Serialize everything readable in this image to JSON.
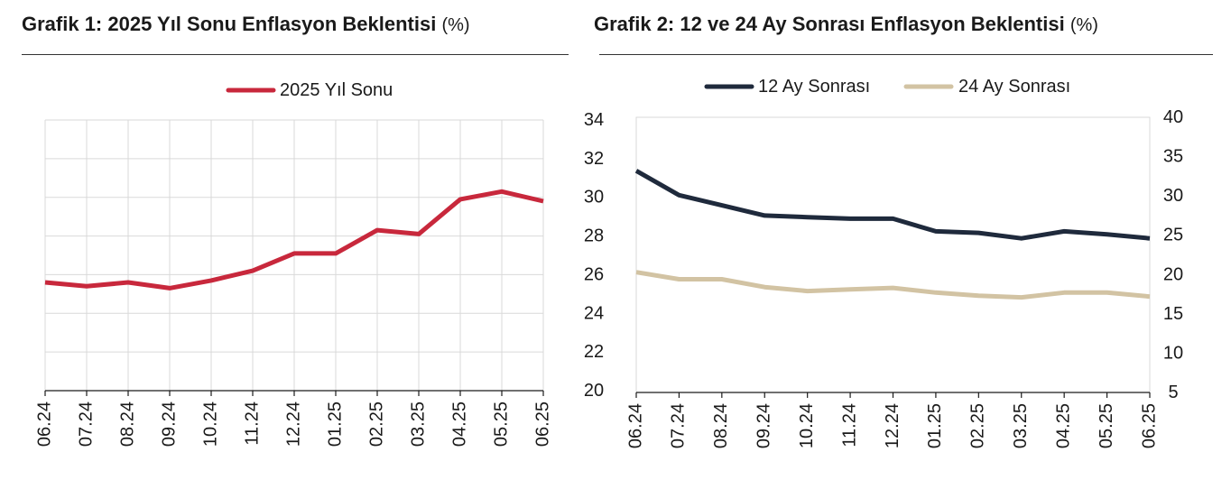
{
  "charts": {
    "left": {
      "title_bold": "Grafik 1: 2025 Yıl Sonu Enflasyon Beklentisi",
      "title_unit": "(%)"
    },
    "right": {
      "title_bold": "Grafik 2: 12 ve 24 Ay Sonrası Enflasyon Beklentisi",
      "title_unit": "(%)"
    }
  },
  "colors": {
    "red": "#c8283c",
    "navy": "#1f2a3c",
    "beige": "#d2c3a3",
    "grid": "#d9d9d9",
    "axis": "#1a1a1a"
  },
  "chart_data": [
    {
      "type": "line",
      "title": "Grafik 1: 2025 Yıl Sonu Enflasyon Beklentisi (%)",
      "categories": [
        "06.24",
        "07.24",
        "08.24",
        "09.24",
        "10.24",
        "11.24",
        "12.24",
        "01.25",
        "02.25",
        "03.25",
        "04.25",
        "05.25",
        "06.25"
      ],
      "y_axis": "right",
      "ylim": [
        20,
        34
      ],
      "yticks": [
        20,
        22,
        24,
        26,
        28,
        30,
        32,
        34
      ],
      "grid": true,
      "legend_position": "top",
      "series": [
        {
          "name": "2025 Yıl Sonu",
          "color": "#c8283c",
          "values": [
            25.6,
            25.4,
            25.6,
            25.3,
            25.7,
            26.2,
            27.1,
            27.1,
            28.3,
            28.1,
            29.9,
            30.3,
            29.8
          ]
        }
      ]
    },
    {
      "type": "line",
      "title": "Grafik 2: 12 ve 24 Ay Sonrası Enflasyon Beklentisi (%)",
      "categories": [
        "06.24",
        "07.24",
        "08.24",
        "09.24",
        "10.24",
        "11.24",
        "12.24",
        "01.25",
        "02.25",
        "03.25",
        "04.25",
        "05.25",
        "06.25"
      ],
      "y_axis": "right",
      "ylim": [
        5,
        40
      ],
      "yticks": [
        5,
        10,
        15,
        20,
        25,
        30,
        35,
        40
      ],
      "grid": false,
      "legend_position": "top",
      "series": [
        {
          "name": "12 Ay Sonrası",
          "color": "#1f2a3c",
          "values": [
            33.2,
            30.1,
            28.8,
            27.5,
            27.3,
            27.1,
            27.1,
            25.5,
            25.3,
            24.6,
            25.5,
            25.1,
            24.6
          ]
        },
        {
          "name": "24 Ay Sonrası",
          "color": "#d2c3a3",
          "values": [
            20.3,
            19.4,
            19.4,
            18.4,
            17.9,
            18.1,
            18.3,
            17.7,
            17.3,
            17.1,
            17.7,
            17.7,
            17.2
          ]
        }
      ]
    }
  ]
}
